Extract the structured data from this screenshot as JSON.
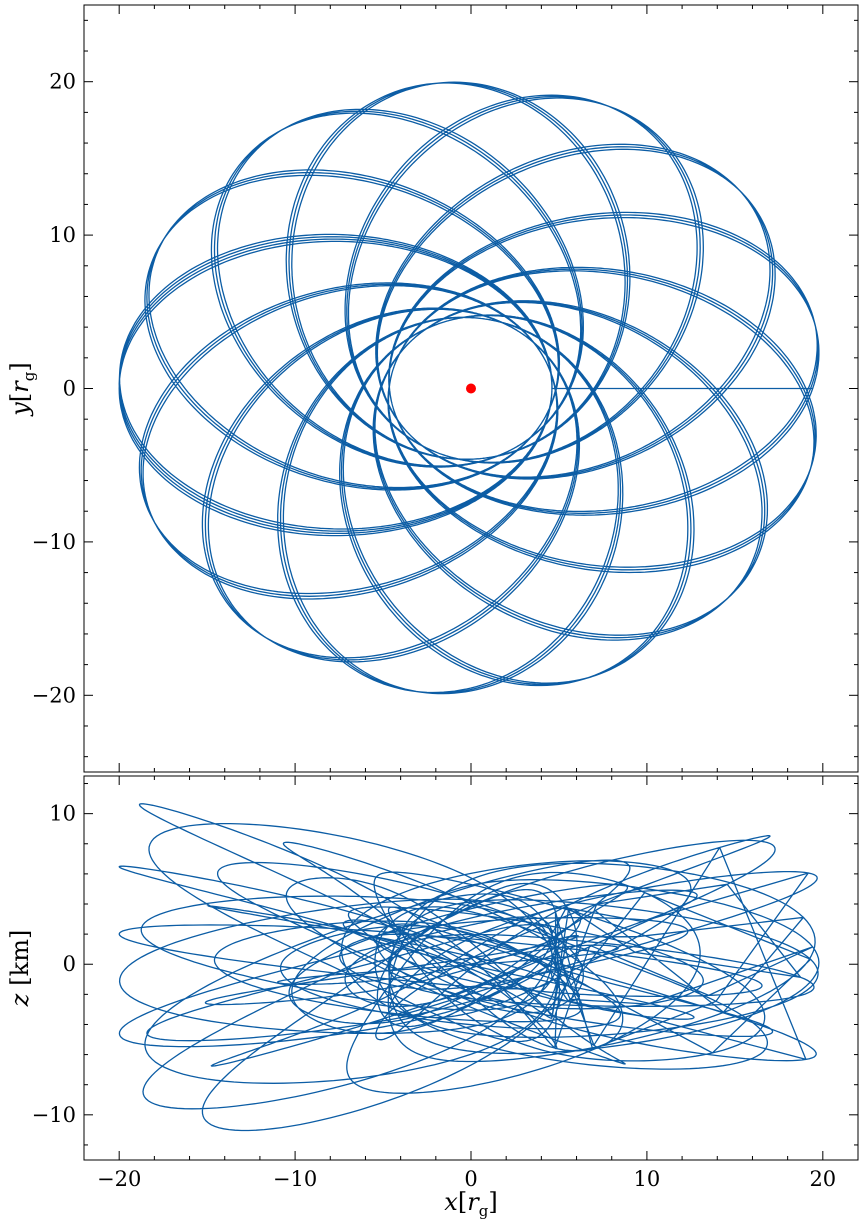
{
  "chart_data": [
    {
      "type": "line",
      "panel": "top",
      "title": "",
      "xlabel": "",
      "ylabel": {
        "var": "y",
        "bracket_open": "[",
        "sym": "r",
        "sub": "g",
        "bracket_close": "]"
      },
      "xlim": [
        -22,
        22
      ],
      "ylim": [
        -25,
        25
      ],
      "xticks": [
        -20,
        -10,
        0,
        10,
        20
      ],
      "yticks": [
        -20,
        -10,
        0,
        10,
        20
      ],
      "ytick_labels": [
        "−20",
        "−10",
        "0",
        "10",
        "20"
      ],
      "grid": false,
      "legend": "none",
      "series": [
        {
          "kind": "precessing-orbit",
          "periapsis": 4.6,
          "apoapsis": 20.0,
          "turns": 40,
          "precession_per_turn_deg": 55.3,
          "color": "#0C5DA5"
        }
      ],
      "markers": [
        {
          "x": 0,
          "y": 0,
          "color": "#FF0000"
        }
      ]
    },
    {
      "type": "line",
      "panel": "bottom",
      "title": "",
      "xlabel": {
        "var": "x",
        "bracket_open": "[",
        "sym": "r",
        "sub": "g",
        "bracket_close": "]"
      },
      "ylabel": {
        "var": "z",
        "unit": "[km]"
      },
      "xlim": [
        -22,
        22
      ],
      "ylim": [
        -13,
        12.5
      ],
      "xticks": [
        -20,
        -10,
        0,
        10,
        20
      ],
      "xtick_labels": [
        "−20",
        "−10",
        "0",
        "10",
        "20"
      ],
      "yticks": [
        -10,
        0,
        10
      ],
      "ytick_labels": [
        "−10",
        "0",
        "10"
      ],
      "grid": false,
      "legend": "none",
      "series": [
        {
          "kind": "z-oscillation-vs-x",
          "z_amplitude_max": 11.5,
          "color": "#0C5DA5"
        }
      ]
    }
  ]
}
